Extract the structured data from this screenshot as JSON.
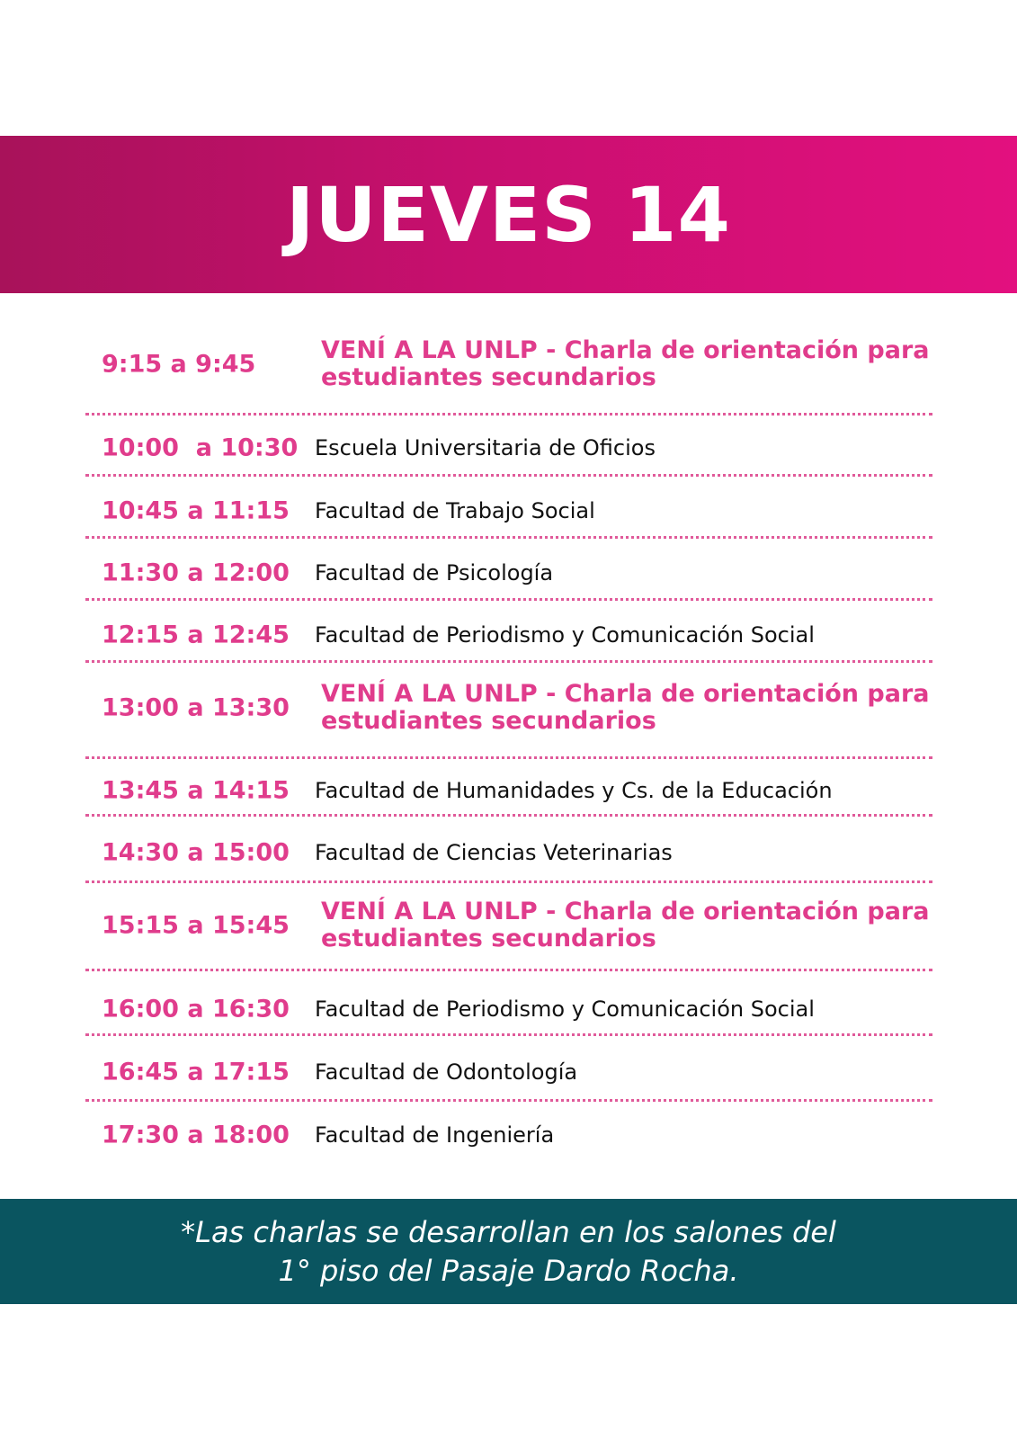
{
  "header": {
    "title": "JUEVES 14"
  },
  "schedule": [
    {
      "time": "9:15 a 9:45",
      "desc": "VENÍ A LA UNLP - Charla de orientación para",
      "desc2": "estudiantes secundarios",
      "highlight": true
    },
    {
      "time": "10:00  a 10:30",
      "desc": "Escuela Universitaria de Oficios"
    },
    {
      "time": "10:45 a 11:15",
      "desc": "Facultad de Trabajo Social"
    },
    {
      "time": "11:30 a 12:00",
      "desc": "Facultad de Psicología"
    },
    {
      "time": "12:15 a 12:45",
      "desc": "Facultad de Periodismo y Comunicación Social"
    },
    {
      "time": "13:00 a 13:30",
      "desc": "VENÍ A LA UNLP - Charla de orientación para",
      "desc2": "estudiantes secundarios",
      "highlight": true
    },
    {
      "time": "13:45 a 14:15",
      "desc": "Facultad de Humanidades y Cs. de la Educación"
    },
    {
      "time": "14:30 a 15:00",
      "desc": "Facultad de Ciencias Veterinarias"
    },
    {
      "time": "15:15 a 15:45",
      "desc": "VENÍ A LA UNLP - Charla de orientación para",
      "desc2": "estudiantes secundarios",
      "highlight": true
    },
    {
      "time": "16:00 a 16:30",
      "desc": "Facultad de Periodismo y Comunicación Social"
    },
    {
      "time": "16:45 a 17:15",
      "desc": "Facultad de Odontología"
    },
    {
      "time": "17:30 a 18:00",
      "desc": "Facultad de Ingeniería"
    }
  ],
  "footer": {
    "line1": "*Las charlas se desarrollan en los salones del",
    "line2": "1° piso del Pasaje Dardo Rocha."
  },
  "colors": {
    "accent": "#e03c8c",
    "banner_start": "#a8125a",
    "banner_end": "#e3107f",
    "footer_bg": "#0a5560"
  }
}
